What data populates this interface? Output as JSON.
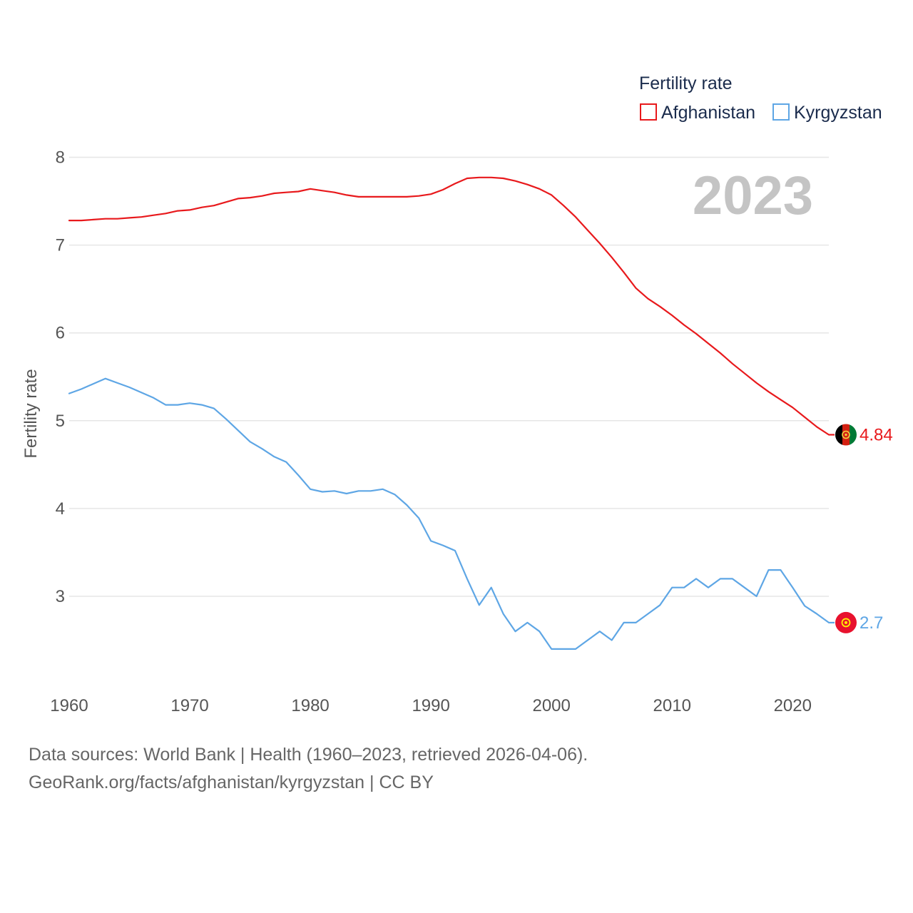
{
  "chart_data": {
    "type": "line",
    "year_label": "2023",
    "ylabel": "Fertility rate",
    "legend_title": "Fertility rate",
    "legend_position": "top-right",
    "xlim": [
      1960,
      2023
    ],
    "ylim": [
      2.2,
      8.1
    ],
    "y_ticks": [
      3,
      4,
      5,
      6,
      7,
      8
    ],
    "x_ticks": [
      1960,
      1970,
      1980,
      1990,
      2000,
      2010,
      2020
    ],
    "grid": true,
    "x": [
      1960,
      1961,
      1962,
      1963,
      1964,
      1965,
      1966,
      1967,
      1968,
      1969,
      1970,
      1971,
      1972,
      1973,
      1974,
      1975,
      1976,
      1977,
      1978,
      1979,
      1980,
      1981,
      1982,
      1983,
      1984,
      1985,
      1986,
      1987,
      1988,
      1989,
      1990,
      1991,
      1992,
      1993,
      1994,
      1995,
      1996,
      1997,
      1998,
      1999,
      2000,
      2001,
      2002,
      2003,
      2004,
      2005,
      2006,
      2007,
      2008,
      2009,
      2010,
      2011,
      2012,
      2013,
      2014,
      2015,
      2016,
      2017,
      2018,
      2019,
      2020,
      2021,
      2022,
      2023
    ],
    "series": [
      {
        "name": "Afghanistan",
        "color": "#e8191c",
        "end_label": "4.84",
        "flag": "afghanistan-flag-icon",
        "values": [
          7.28,
          7.28,
          7.29,
          7.3,
          7.3,
          7.31,
          7.32,
          7.34,
          7.36,
          7.39,
          7.4,
          7.43,
          7.45,
          7.49,
          7.53,
          7.54,
          7.56,
          7.59,
          7.6,
          7.61,
          7.64,
          7.62,
          7.6,
          7.57,
          7.55,
          7.55,
          7.55,
          7.55,
          7.55,
          7.56,
          7.58,
          7.63,
          7.7,
          7.76,
          7.77,
          7.77,
          7.76,
          7.73,
          7.69,
          7.64,
          7.57,
          7.45,
          7.32,
          7.17,
          7.02,
          6.86,
          6.69,
          6.51,
          6.39,
          6.3,
          6.2,
          6.09,
          5.99,
          5.88,
          5.77,
          5.65,
          5.54,
          5.43,
          5.33,
          5.24,
          5.15,
          5.04,
          4.93,
          4.84
        ]
      },
      {
        "name": "Kyrgyzstan",
        "color": "#5ea6e5",
        "end_label": "2.7",
        "flag": "kyrgyzstan-flag-icon",
        "values": [
          5.31,
          5.36,
          5.42,
          5.48,
          5.43,
          5.38,
          5.32,
          5.26,
          5.18,
          5.18,
          5.2,
          5.18,
          5.14,
          5.02,
          4.89,
          4.76,
          4.68,
          4.59,
          4.53,
          4.38,
          4.22,
          4.19,
          4.2,
          4.17,
          4.2,
          4.2,
          4.22,
          4.16,
          4.04,
          3.89,
          3.63,
          3.58,
          3.52,
          3.2,
          2.9,
          3.1,
          2.8,
          2.6,
          2.7,
          2.6,
          2.4,
          2.4,
          2.4,
          2.5,
          2.6,
          2.5,
          2.7,
          2.7,
          2.8,
          2.9,
          3.1,
          3.1,
          3.2,
          3.1,
          3.2,
          3.2,
          3.1,
          3.0,
          3.3,
          3.3,
          3.1,
          2.89,
          2.8,
          2.7
        ]
      }
    ],
    "footer": [
      "Data sources: World Bank | Health (1960–2023, retrieved 2026-04-06).",
      "GeoRank.org/facts/afghanistan/kyrgyzstan | CC BY"
    ]
  }
}
